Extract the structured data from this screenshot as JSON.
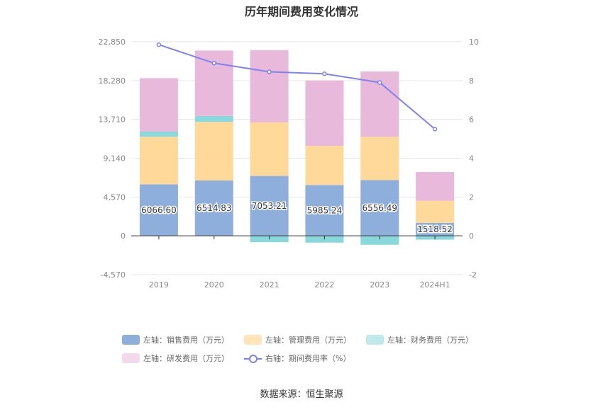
{
  "chart_data": {
    "type": "bar",
    "title": "历年期间费用变化情况",
    "categories": [
      "2019",
      "2020",
      "2021",
      "2022",
      "2023",
      "2024H1"
    ],
    "left_axis": {
      "ticks": [
        -4570,
        0,
        4570,
        9140,
        13710,
        18280,
        22850
      ],
      "tick_labels": [
        "-4,570",
        "0",
        "4,570",
        "9,140",
        "13,710",
        "18,280",
        "22,850"
      ],
      "ylim": [
        -4570,
        22850
      ]
    },
    "right_axis": {
      "ticks": [
        -2,
        0,
        2,
        4,
        6,
        8,
        10
      ],
      "tick_labels": [
        "-2",
        "0",
        "2",
        "4",
        "6",
        "8",
        "10"
      ],
      "ylim": [
        -2,
        10
      ]
    },
    "series": [
      {
        "name": "左轴：销售费用（万元）",
        "axis": "left",
        "stack": true,
        "color": "#8eaedb",
        "values": [
          6066.6,
          6514.83,
          7053.21,
          5985.24,
          6556.49,
          1518.52
        ],
        "labels": [
          "6066.60",
          "6514.83",
          "7053.21",
          "5985.24",
          "6556.49",
          "1518.52"
        ]
      },
      {
        "name": "左轴：管理费用（万元）",
        "axis": "left",
        "stack": true,
        "color": "#ffd99a",
        "values": [
          5600,
          6900,
          6300,
          4600,
          5100,
          2600
        ]
      },
      {
        "name": "左轴：财务费用（万元）",
        "axis": "left",
        "stack": true,
        "color": "#88d8dc",
        "values": [
          600,
          700,
          -750,
          -800,
          -1050,
          -450
        ]
      },
      {
        "name": "左轴：研发费用（万元）",
        "axis": "left",
        "stack": true,
        "color": "#e8b9da",
        "values": [
          6300,
          7700,
          8500,
          7700,
          7700,
          3400
        ]
      },
      {
        "name": "右轴：期间费用率（%）",
        "axis": "right",
        "type": "line",
        "color": "#7e82f0",
        "values": [
          9.85,
          8.9,
          8.45,
          8.35,
          7.9,
          5.5
        ]
      }
    ],
    "source": "数据来源：恒生聚源"
  }
}
